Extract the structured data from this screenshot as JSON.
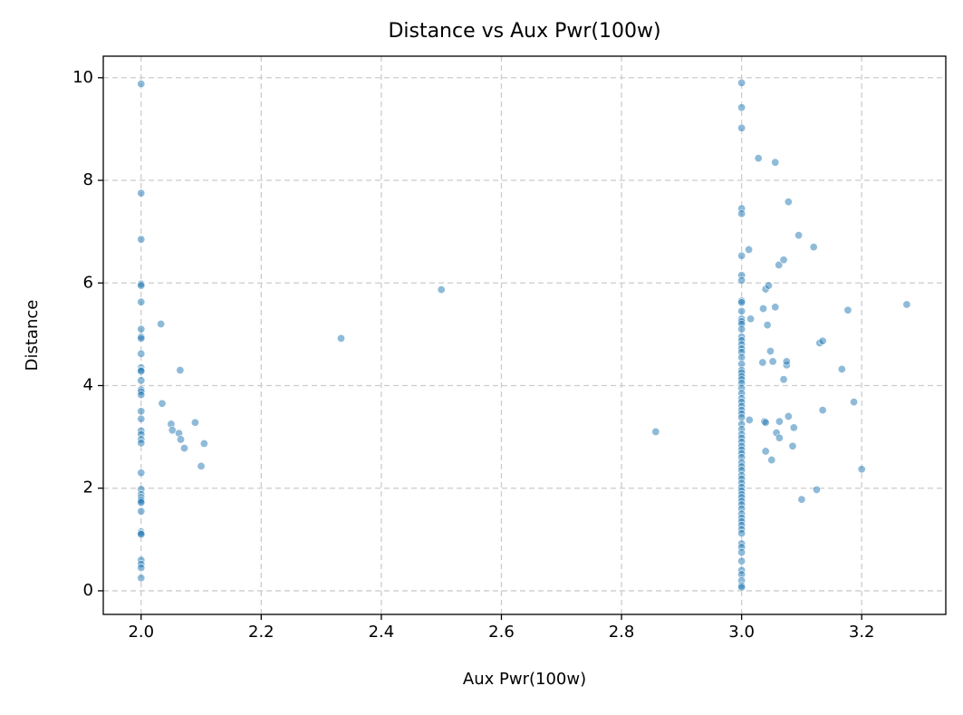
{
  "chart_data": {
    "type": "scatter",
    "title": "Distance vs Aux Pwr(100w)",
    "x_label": "Aux Pwr(100w)",
    "y_label": "Distance",
    "color": "#1f77b4",
    "grid": true,
    "xlim": [
      1.937,
      3.34
    ],
    "ylim": [
      -0.46,
      10.42
    ],
    "xticks": [
      {
        "value": 2,
        "label": "2.0"
      },
      2.2,
      2.4,
      2.6,
      2.8,
      {
        "value": 3,
        "label": "3.0"
      },
      3.2
    ],
    "yticks": [
      0,
      2,
      4,
      6,
      8,
      10
    ],
    "x": [
      2,
      2,
      2,
      2,
      2,
      2,
      2,
      2,
      2,
      2,
      2,
      2,
      2,
      2,
      2,
      2,
      2,
      2,
      2,
      2,
      2,
      2,
      2,
      2,
      2,
      2,
      2,
      2,
      2,
      2,
      2,
      2,
      2,
      2,
      2,
      2,
      2,
      2,
      2.033,
      2.035,
      2.05,
      2.052,
      2.063,
      2.065,
      2.066,
      2.072,
      2.09,
      2.1,
      2.105,
      2.333,
      2.5,
      2.857,
      3,
      3,
      3,
      3,
      3,
      3,
      3,
      3,
      3,
      3,
      3,
      3,
      3,
      3,
      3,
      3,
      3,
      3,
      3,
      3,
      3,
      3,
      3,
      3,
      3,
      3,
      3,
      3,
      3,
      3,
      3,
      3,
      3,
      3,
      3,
      3,
      3,
      3,
      3,
      3,
      3,
      3,
      3,
      3,
      3,
      3,
      3,
      3,
      3,
      3,
      3,
      3,
      3,
      3,
      3,
      3,
      3,
      3,
      3,
      3,
      3,
      3,
      3,
      3,
      3,
      3,
      3,
      3,
      3,
      3,
      3,
      3,
      3.012,
      3.015,
      3.013,
      3.028,
      3.035,
      3.036,
      3.038,
      3.04,
      3.04,
      3.04,
      3.043,
      3.045,
      3.048,
      3.05,
      3.052,
      3.056,
      3.056,
      3.058,
      3.062,
      3.063,
      3.063,
      3.07,
      3.07,
      3.075,
      3.075,
      3.078,
      3.078,
      3.085,
      3.087,
      3.095,
      3.1,
      3.12,
      3.125,
      3.13,
      3.135,
      3.135,
      3.167,
      3.177,
      3.187,
      3.2,
      3.275
    ],
    "values": [
      9.88,
      7.75,
      6.85,
      5.98,
      5.95,
      5.63,
      5.1,
      4.95,
      4.92,
      4.62,
      4.35,
      4.3,
      4.28,
      4.1,
      3.92,
      3.88,
      3.82,
      3.5,
      3.35,
      3.12,
      3.05,
      2.95,
      2.88,
      2.3,
      1.98,
      1.88,
      1.82,
      1.78,
      1.75,
      1.72,
      1.55,
      1.15,
      1.12,
      1.1,
      0.6,
      0.52,
      0.45,
      0.25,
      5.2,
      3.65,
      3.25,
      3.13,
      3.07,
      4.3,
      2.95,
      2.78,
      3.28,
      2.43,
      2.87,
      4.92,
      5.87,
      3.1,
      9.9,
      9.42,
      9.02,
      7.45,
      7.35,
      6.53,
      6.15,
      6.05,
      5.65,
      5.62,
      5.45,
      5.3,
      5.25,
      5.2,
      5.1,
      4.95,
      4.88,
      4.8,
      4.72,
      4.65,
      4.55,
      4.42,
      4.3,
      4.25,
      4.18,
      4.12,
      4.05,
      3.95,
      3.85,
      3.75,
      3.68,
      3.6,
      3.52,
      3.45,
      3.38,
      3.25,
      3.15,
      3.05,
      2.98,
      2.9,
      2.82,
      2.75,
      2.68,
      2.6,
      2.5,
      2.42,
      2.35,
      2.25,
      2.18,
      2.1,
      2.02,
      1.95,
      1.88,
      1.82,
      1.75,
      1.68,
      1.6,
      1.5,
      1.42,
      1.35,
      1.28,
      1.2,
      1.12,
      0.92,
      0.85,
      0.75,
      0.58,
      0.4,
      0.32,
      0.2,
      0.1,
      0.07,
      6.65,
      5.3,
      3.33,
      8.43,
      4.45,
      5.5,
      3.3,
      3.28,
      5.88,
      2.72,
      5.18,
      5.95,
      4.67,
      2.55,
      4.47,
      8.35,
      5.53,
      3.08,
      6.35,
      3.3,
      2.98,
      6.45,
      4.12,
      4.4,
      4.47,
      3.4,
      7.58,
      2.82,
      3.18,
      6.93,
      1.78,
      6.7,
      1.97,
      4.83,
      4.87,
      3.52,
      4.32,
      5.47,
      3.68,
      2.37,
      5.58
    ]
  }
}
